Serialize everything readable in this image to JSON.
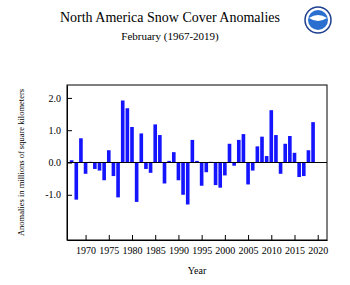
{
  "chart_data": {
    "type": "bar",
    "title": "North America Snow Cover Anomalies",
    "subtitle": "February (1967-2019)",
    "x_label": "Year",
    "y_label": "Anomalies in millions of square kilometers",
    "x": [
      1967,
      1968,
      1969,
      1970,
      1971,
      1972,
      1973,
      1974,
      1975,
      1976,
      1977,
      1978,
      1979,
      1980,
      1981,
      1982,
      1983,
      1984,
      1985,
      1986,
      1987,
      1988,
      1989,
      1990,
      1991,
      1992,
      1993,
      1994,
      1995,
      1996,
      1997,
      1998,
      1999,
      2000,
      2001,
      2002,
      2003,
      2004,
      2005,
      2006,
      2007,
      2008,
      2009,
      2010,
      2011,
      2012,
      2013,
      2014,
      2015,
      2016,
      2017,
      2018,
      2019
    ],
    "values": [
      0.07,
      -1.15,
      0.75,
      -0.35,
      0.02,
      -0.2,
      -0.25,
      -0.55,
      0.38,
      -0.42,
      -1.08,
      1.92,
      1.68,
      1.1,
      -1.22,
      0.9,
      -0.2,
      -0.32,
      1.18,
      0.85,
      -0.65,
      0.05,
      0.32,
      -0.55,
      -1.0,
      -1.3,
      0.7,
      0.05,
      -0.72,
      -0.3,
      0.02,
      -0.7,
      -0.78,
      -0.4,
      0.58,
      -0.1,
      0.7,
      0.88,
      -0.68,
      -0.25,
      0.5,
      0.8,
      0.2,
      1.62,
      0.85,
      -0.35,
      0.58,
      0.82,
      0.3,
      -0.45,
      -0.42,
      0.38,
      1.25
    ],
    "color": "#1414ff",
    "xlim": [
      1966,
      2022
    ],
    "xticks": [
      1970,
      1975,
      1980,
      1985,
      1990,
      1995,
      2000,
      2005,
      2010,
      2015,
      2020
    ],
    "ylim": [
      -2.4,
      2.4
    ],
    "yticks": [
      {
        "value": -1,
        "label": "-1.0"
      },
      {
        "value": 0,
        "label": "0.0"
      },
      {
        "value": 1,
        "label": "1.0"
      },
      {
        "value": 2,
        "label": "2.0"
      }
    ],
    "grid": false
  }
}
